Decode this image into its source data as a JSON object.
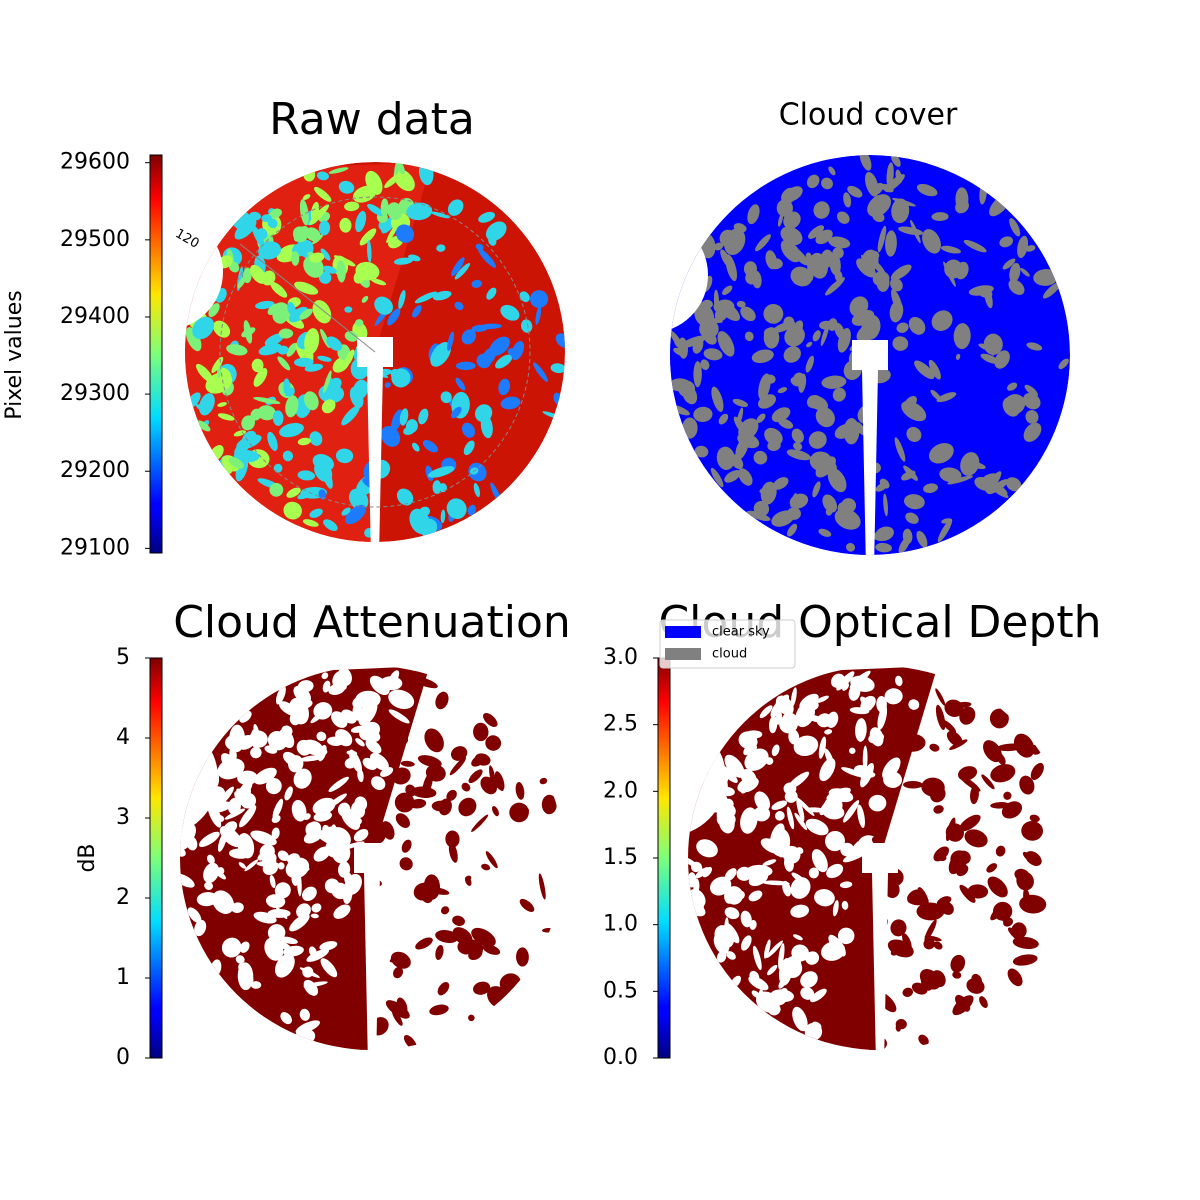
{
  "chart_data": [
    {
      "type": "image",
      "title": "Raw data",
      "colormap": "jet",
      "annotation": "120",
      "colorbar": {
        "label": "Pixel values",
        "lim": [
          29094,
          29610
        ],
        "ticks": [
          29100,
          29200,
          29300,
          29400,
          29500,
          29600
        ]
      }
    },
    {
      "type": "image",
      "title": "Cloud cover",
      "legend": [
        {
          "name": "clear sky",
          "color": "#0000ff"
        },
        {
          "name": "cloud",
          "color": "#808080"
        }
      ]
    },
    {
      "type": "image",
      "title": "Cloud Attenuation",
      "colormap": "jet",
      "colorbar": {
        "label": "dB",
        "lim": [
          0,
          5
        ],
        "ticks": [
          0,
          1,
          2,
          3,
          4,
          5
        ]
      }
    },
    {
      "type": "image",
      "title": "Cloud Optical Depth",
      "colormap": "jet",
      "colorbar": {
        "lim": [
          0,
          3
        ],
        "ticks": [
          {
            "value": 0,
            "label": "0.0"
          },
          0.5,
          {
            "value": 1,
            "label": "1.0"
          },
          1.5,
          {
            "value": 2,
            "label": "2.0"
          },
          2.5,
          {
            "value": 3,
            "label": "3.0"
          }
        ]
      }
    }
  ]
}
